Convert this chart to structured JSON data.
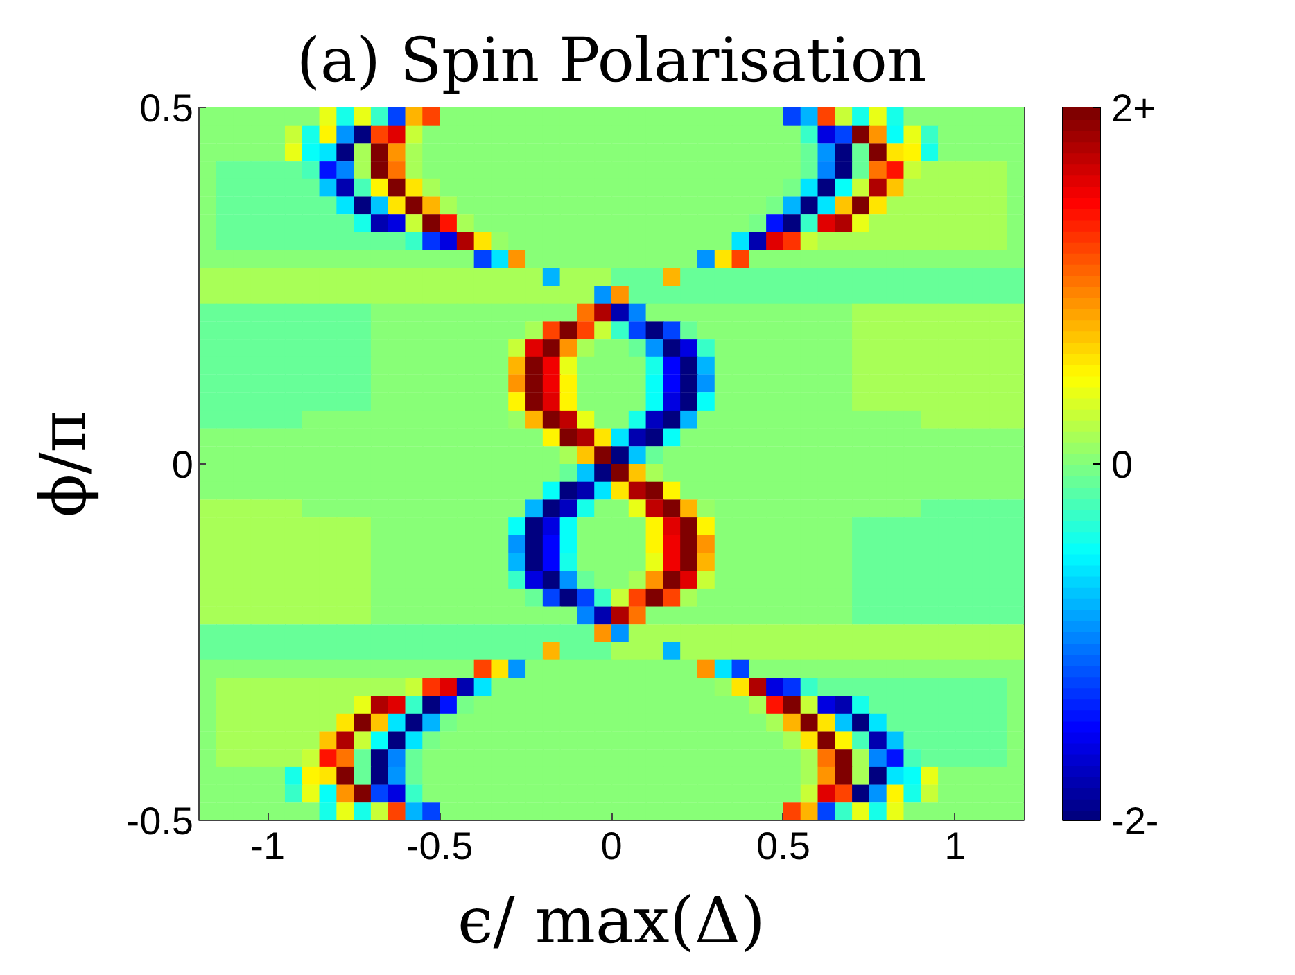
{
  "chart_data": {
    "type": "heatmap",
    "title": "(a) Spin Polarisation",
    "xlabel": "ϵ/ max(Δ)",
    "ylabel": "ϕ/π",
    "xlim": [
      -1.2,
      1.2
    ],
    "xticks": [
      -1,
      -0.5,
      0,
      0.5,
      1
    ],
    "ylim": [
      -0.5,
      0.5
    ],
    "yticks": [
      -0.5,
      0,
      0.5
    ],
    "clim": [
      -2,
      2
    ],
    "cticks": [
      {
        "value": -2,
        "label": "-2-"
      },
      0,
      {
        "value": 2,
        "label": "2+"
      }
    ],
    "x": [
      -1.175,
      -1.125,
      -1.075,
      -1.025,
      -0.975,
      -0.925,
      -0.875,
      -0.825,
      -0.775,
      -0.725,
      -0.675,
      -0.625,
      -0.575,
      -0.525,
      -0.475,
      -0.425,
      -0.375,
      -0.325,
      -0.275,
      -0.225,
      -0.175,
      -0.125,
      -0.075,
      -0.025,
      0.025,
      0.075,
      0.125,
      0.175,
      0.225,
      0.275,
      0.325,
      0.375,
      0.425,
      0.475,
      0.525,
      0.575,
      0.625,
      0.675,
      0.725,
      0.775,
      0.825,
      0.875,
      0.925,
      0.975,
      1.025,
      1.075,
      1.125,
      1.175
    ],
    "cells": [
      [
        0.05,
        0.05,
        0.05,
        0.05,
        0.05,
        0.05,
        0.05,
        0.4,
        -0.4,
        0.4,
        -0.3,
        -1.2,
        0.8,
        1.2,
        0.05,
        0.05,
        0.05,
        0.05,
        0.05,
        0.05,
        0.05,
        0.05,
        0.05,
        0.05,
        0.05,
        0.05,
        0.05,
        0.05,
        0.05,
        0.05,
        0.05,
        0.05,
        0.05,
        0.05,
        -1.2,
        -0.8,
        1.2,
        0.3,
        -0.4,
        0.4,
        -0.4,
        0.05,
        0.05,
        0.05,
        0.05,
        0.05,
        0.05,
        0.05
      ],
      [
        0.05,
        0.05,
        0.05,
        0.05,
        0.05,
        0.3,
        -0.4,
        0.5,
        -0.9,
        -2,
        1.2,
        1.6,
        0.3,
        0.05,
        0.05,
        0.05,
        0.05,
        0.05,
        0.05,
        0.05,
        0.05,
        0.05,
        0.05,
        0.05,
        0.05,
        0.05,
        0.05,
        0.05,
        0.05,
        0.05,
        0.05,
        0.05,
        0.05,
        0.05,
        0.05,
        -0.3,
        -1.6,
        -1.2,
        2,
        0.9,
        -0.5,
        0.4,
        -0.3,
        0.05,
        0.05,
        0.05,
        0.05,
        0.05
      ],
      [
        0.05,
        0.05,
        0.05,
        0.05,
        0.05,
        0.4,
        -0.5,
        -0.6,
        -2,
        0.15,
        2,
        0.9,
        0.15,
        0.05,
        0.05,
        0.05,
        0.05,
        0.05,
        0.05,
        0.05,
        0.05,
        0.05,
        0.05,
        0.05,
        0.05,
        0.05,
        0.05,
        0.05,
        0.05,
        0.05,
        0.05,
        0.05,
        0.05,
        0.05,
        0.05,
        -0.1,
        -0.9,
        -2,
        -0.1,
        2,
        0.6,
        0.5,
        -0.4,
        0.05,
        0.05,
        0.05,
        0.05,
        0.05
      ],
      [
        0.05,
        -0.1,
        -0.1,
        -0.1,
        -0.1,
        -0.1,
        -0.2,
        -1.4,
        -1,
        0.15,
        2,
        1,
        0.15,
        0.05,
        0.05,
        0.05,
        0.05,
        0.05,
        0.05,
        0.05,
        0.05,
        0.05,
        0.05,
        0.05,
        0.05,
        0.05,
        0.05,
        0.05,
        0.05,
        0.05,
        0.05,
        0.05,
        0.05,
        0.05,
        0.05,
        -0.1,
        -1,
        -2,
        -0.1,
        1,
        1.4,
        0.3,
        0.15,
        0.15,
        0.15,
        0.15,
        0.15,
        0.05
      ],
      [
        0.05,
        -0.1,
        -0.1,
        -0.1,
        -0.1,
        -0.1,
        -0.1,
        -0.7,
        -1.8,
        -0.2,
        0.5,
        2,
        0.6,
        0.15,
        0.05,
        0.05,
        0.05,
        0.05,
        0.05,
        0.05,
        0.05,
        0.05,
        0.05,
        0.05,
        0.05,
        0.05,
        0.05,
        0.05,
        0.05,
        0.05,
        0.05,
        0.05,
        0.05,
        0.05,
        -0.05,
        -0.6,
        -2,
        -0.5,
        0.3,
        1.8,
        0.7,
        0.15,
        0.15,
        0.15,
        0.15,
        0.15,
        0.15,
        0.05
      ],
      [
        0.05,
        -0.1,
        -0.1,
        -0.1,
        -0.1,
        -0.1,
        -0.1,
        -0.1,
        -0.6,
        -2,
        -0.7,
        0.6,
        2,
        0.8,
        0.15,
        0.05,
        0.05,
        0.05,
        0.05,
        0.05,
        0.05,
        0.05,
        0.05,
        0.05,
        0.05,
        0.05,
        0.05,
        0.05,
        0.05,
        0.05,
        0.05,
        0.05,
        0.05,
        -0.05,
        -0.8,
        -2,
        -0.6,
        0.7,
        2,
        0.6,
        0.15,
        0.15,
        0.15,
        0.15,
        0.15,
        0.15,
        0.15,
        0.05
      ],
      [
        0.05,
        -0.1,
        -0.1,
        -0.1,
        -0.1,
        -0.1,
        -0.1,
        -0.1,
        -0.1,
        -0.4,
        -1.8,
        -1.6,
        0.3,
        2,
        1.4,
        0.15,
        0.05,
        0.05,
        0.05,
        0.05,
        0.05,
        0.05,
        0.05,
        0.05,
        0.05,
        0.05,
        0.05,
        0.05,
        0.05,
        0.05,
        0.05,
        0.05,
        -0.05,
        -1.4,
        -2,
        -0.3,
        1.6,
        1.8,
        0.4,
        0.15,
        0.15,
        0.15,
        0.15,
        0.15,
        0.15,
        0.15,
        0.15,
        0.05
      ],
      [
        0.05,
        -0.1,
        -0.1,
        -0.1,
        -0.1,
        -0.1,
        -0.1,
        -0.1,
        -0.1,
        -0.1,
        -0.1,
        -0.1,
        -0.3,
        -1.3,
        -1.6,
        1.8,
        0.6,
        0.1,
        0.05,
        0.05,
        0.05,
        0.05,
        0.05,
        0.05,
        0.05,
        0.05,
        0.05,
        0.05,
        0.05,
        0.05,
        0,
        -0.6,
        -1.8,
        1.6,
        1.3,
        0.3,
        0.15,
        0.15,
        0.15,
        0.15,
        0.15,
        0.15,
        0.15,
        0.15,
        0.15,
        0.15,
        0.15,
        0.05
      ],
      [
        0.05,
        0.05,
        0.05,
        0.05,
        0.05,
        0.05,
        0.05,
        0.05,
        0.05,
        0.05,
        0.05,
        0.05,
        0.05,
        0.05,
        0.05,
        0.05,
        -1.2,
        -0.6,
        0.9,
        0.05,
        0.05,
        0.05,
        0.05,
        0.05,
        0.05,
        0.05,
        0.05,
        0.05,
        0.05,
        -0.9,
        0.6,
        1.2,
        0.05,
        0.05,
        0.05,
        0.05,
        0.05,
        0.05,
        0.05,
        0.05,
        0.05,
        0.05,
        0.05,
        0.05,
        0.05,
        0.05,
        0.05,
        0.05
      ],
      [
        0.15,
        0.15,
        0.15,
        0.15,
        0.15,
        0.15,
        0.15,
        0.15,
        0.15,
        0.15,
        0.15,
        0.15,
        0.15,
        0.15,
        0.15,
        0.15,
        0.15,
        0.15,
        0.15,
        0.15,
        -0.8,
        0.15,
        0.15,
        0.15,
        -0.1,
        -0.1,
        -0.1,
        0.8,
        -0.1,
        -0.1,
        -0.1,
        -0.1,
        -0.1,
        -0.1,
        -0.1,
        -0.1,
        -0.1,
        -0.1,
        -0.1,
        -0.1,
        -0.1,
        -0.1,
        -0.1,
        -0.1,
        -0.1,
        -0.1,
        -0.1,
        -0.1
      ],
      [
        0.15,
        0.15,
        0.15,
        0.15,
        0.15,
        0.15,
        0.15,
        0.15,
        0.15,
        0.15,
        0.15,
        0.15,
        0.15,
        0.15,
        0.15,
        0.15,
        0.15,
        0.15,
        0.15,
        0.15,
        0.15,
        0.15,
        0.15,
        -0.9,
        0.9,
        -0.1,
        -0.1,
        -0.1,
        -0.1,
        -0.1,
        -0.1,
        -0.1,
        -0.1,
        -0.1,
        -0.1,
        -0.1,
        -0.1,
        -0.1,
        -0.1,
        -0.1,
        -0.1,
        -0.1,
        -0.1,
        -0.1,
        -0.1,
        -0.1,
        -0.1,
        -0.1
      ],
      [
        -0.1,
        -0.1,
        -0.1,
        -0.1,
        -0.1,
        -0.1,
        -0.1,
        -0.1,
        -0.1,
        -0.1,
        0.05,
        0.05,
        0.05,
        0.05,
        0.05,
        0.05,
        0.05,
        0.05,
        0.05,
        0.05,
        0.05,
        0.05,
        1,
        1.8,
        -1.8,
        -1,
        0.05,
        0.05,
        0.05,
        0.05,
        0.05,
        0.05,
        0.05,
        0.05,
        0.05,
        0.05,
        0.05,
        0.05,
        0.15,
        0.15,
        0.15,
        0.15,
        0.15,
        0.15,
        0.15,
        0.15,
        0.15,
        0.15
      ],
      [
        -0.1,
        -0.1,
        -0.1,
        -0.1,
        -0.1,
        -0.1,
        -0.1,
        -0.1,
        -0.1,
        -0.1,
        0.05,
        0.05,
        0.05,
        0.05,
        0.05,
        0.05,
        0.05,
        0.05,
        0.05,
        0.15,
        1.2,
        2,
        1.2,
        0.3,
        -0.3,
        -1.2,
        -2,
        -1.2,
        -0.1,
        0.05,
        0.05,
        0.05,
        0.05,
        0.05,
        0.05,
        0.05,
        0.05,
        0.05,
        0.15,
        0.15,
        0.15,
        0.15,
        0.15,
        0.15,
        0.15,
        0.15,
        0.15,
        0.15
      ],
      [
        -0.1,
        -0.1,
        -0.1,
        -0.1,
        -0.1,
        -0.1,
        -0.1,
        -0.1,
        -0.1,
        -0.1,
        0.05,
        0.05,
        0.05,
        0.05,
        0.05,
        0.05,
        0.05,
        0.05,
        0.3,
        1.6,
        2,
        0.9,
        0.15,
        0.05,
        0.05,
        -0.1,
        -0.9,
        -2,
        -1.6,
        -0.3,
        0.05,
        0.05,
        0.05,
        0.05,
        0.05,
        0.05,
        0.05,
        0.05,
        0.15,
        0.15,
        0.15,
        0.15,
        0.15,
        0.15,
        0.15,
        0.15,
        0.15,
        0.15
      ],
      [
        -0.1,
        -0.1,
        -0.1,
        -0.1,
        -0.1,
        -0.1,
        -0.1,
        -0.1,
        -0.1,
        -0.1,
        0.05,
        0.05,
        0.05,
        0.05,
        0.05,
        0.05,
        0.05,
        0.05,
        0.8,
        2,
        1.5,
        0.4,
        0.05,
        0.05,
        0.05,
        0.05,
        -0.4,
        -1.5,
        -2,
        -0.8,
        0.05,
        0.05,
        0.05,
        0.05,
        0.05,
        0.05,
        0.05,
        0.05,
        0.15,
        0.15,
        0.15,
        0.15,
        0.15,
        0.15,
        0.15,
        0.15,
        0.15,
        0.15
      ],
      [
        -0.1,
        -0.1,
        -0.1,
        -0.1,
        -0.1,
        -0.1,
        -0.1,
        -0.1,
        -0.1,
        -0.1,
        0.05,
        0.05,
        0.05,
        0.05,
        0.05,
        0.05,
        0.05,
        0.05,
        0.9,
        2,
        1.5,
        0.5,
        0.05,
        0.05,
        0.05,
        0.05,
        -0.5,
        -1.5,
        -2,
        -0.9,
        0.05,
        0.05,
        0.05,
        0.05,
        0.05,
        0.05,
        0.05,
        0.05,
        0.15,
        0.15,
        0.15,
        0.15,
        0.15,
        0.15,
        0.15,
        0.15,
        0.15,
        0.15
      ],
      [
        -0.1,
        -0.1,
        -0.1,
        -0.1,
        -0.1,
        -0.1,
        -0.1,
        -0.1,
        -0.1,
        -0.1,
        0.05,
        0.05,
        0.05,
        0.05,
        0.05,
        0.05,
        0.05,
        0.05,
        0.5,
        2,
        1.6,
        0.5,
        0.05,
        0.05,
        0.05,
        0.05,
        -0.5,
        -1.6,
        -2,
        -0.5,
        0.05,
        0.05,
        0.05,
        0.05,
        0.05,
        0.05,
        0.05,
        0.05,
        0.15,
        0.15,
        0.15,
        0.15,
        0.15,
        0.15,
        0.15,
        0.15,
        0.15,
        0.15
      ],
      [
        -0.1,
        -0.1,
        -0.1,
        -0.1,
        -0.1,
        -0.1,
        0.05,
        0.05,
        0.05,
        0.05,
        0.05,
        0.05,
        0.05,
        0.05,
        0.05,
        0.05,
        0.05,
        0.05,
        0.1,
        0.8,
        2,
        1.7,
        0.4,
        0.05,
        0.05,
        -0.4,
        -1.7,
        -2,
        -0.8,
        0,
        0.05,
        0.05,
        0.05,
        0.05,
        0.05,
        0.05,
        0.05,
        0.05,
        0.05,
        0.05,
        0.05,
        0.05,
        0.15,
        0.15,
        0.15,
        0.15,
        0.15,
        0.15
      ],
      [
        0.05,
        0.05,
        0.05,
        0.05,
        0.05,
        0.05,
        0.05,
        0.05,
        0.05,
        0.05,
        0.05,
        0.05,
        0.05,
        0.05,
        0.05,
        0.05,
        0.05,
        0.05,
        0.05,
        0.05,
        0.5,
        2,
        1.8,
        0.6,
        -0.6,
        -1.8,
        -2,
        -0.5,
        0.05,
        0.05,
        0.05,
        0.05,
        0.05,
        0.05,
        0.05,
        0.05,
        0.05,
        0.05,
        0.05,
        0.05,
        0.05,
        0.05,
        0.05,
        0.05,
        0.05,
        0.05,
        0.05,
        0.05
      ],
      [
        0.05,
        0.05,
        0.05,
        0.05,
        0.05,
        0.05,
        0.05,
        0.05,
        0.05,
        0.05,
        0.05,
        0.05,
        0.05,
        0.05,
        0.05,
        0.05,
        0.05,
        0.05,
        0.05,
        0.05,
        0.05,
        0.15,
        0.7,
        2,
        -2,
        -0.7,
        -0.1,
        0.05,
        0.05,
        0.05,
        0.05,
        0.05,
        0.05,
        0.05,
        0.05,
        0.05,
        0.05,
        0.05,
        0.05,
        0.05,
        0.05,
        0.05,
        0.05,
        0.05,
        0.05,
        0.05,
        0.05,
        0.05
      ],
      [
        0.05,
        0.05,
        0.05,
        0.05,
        0.05,
        0.05,
        0.05,
        0.05,
        0.05,
        0.05,
        0.05,
        0.05,
        0.05,
        0.05,
        0.05,
        0.05,
        0.05,
        0.05,
        0.05,
        0.05,
        0.05,
        -0.1,
        -0.7,
        -2,
        2,
        0.7,
        0.15,
        0.05,
        0.05,
        0.05,
        0.05,
        0.05,
        0.05,
        0.05,
        0.05,
        0.05,
        0.05,
        0.05,
        0.05,
        0.05,
        0.05,
        0.05,
        0.05,
        0.05,
        0.05,
        0.05,
        0.05,
        0.05
      ],
      [
        0.05,
        0.05,
        0.05,
        0.05,
        0.05,
        0.05,
        0.05,
        0.05,
        0.05,
        0.05,
        0.05,
        0.05,
        0.05,
        0.05,
        0.05,
        0.05,
        0.05,
        0.05,
        0.05,
        0.05,
        -0.5,
        -2,
        -1.8,
        -0.6,
        0.6,
        1.8,
        2,
        0.5,
        0.05,
        0.05,
        0.05,
        0.05,
        0.05,
        0.05,
        0.05,
        0.05,
        0.05,
        0.05,
        0.05,
        0.05,
        0.05,
        0.05,
        0.05,
        0.05,
        0.05,
        0.05,
        0.05,
        0.05
      ],
      [
        0.15,
        0.15,
        0.15,
        0.15,
        0.15,
        0.15,
        0.05,
        0.05,
        0.05,
        0.05,
        0.05,
        0.05,
        0.05,
        0.05,
        0.05,
        0.05,
        0.05,
        0.05,
        0,
        -0.8,
        -2,
        -1.7,
        -0.4,
        0.05,
        0.05,
        0.4,
        1.7,
        2,
        0.8,
        0.1,
        0.05,
        0.05,
        0.05,
        0.05,
        0.05,
        0.05,
        0.05,
        0.05,
        0.05,
        0.05,
        0.05,
        0.05,
        -0.1,
        -0.1,
        -0.1,
        -0.1,
        -0.1,
        -0.1
      ],
      [
        0.15,
        0.15,
        0.15,
        0.15,
        0.15,
        0.15,
        0.15,
        0.15,
        0.15,
        0.15,
        0.05,
        0.05,
        0.05,
        0.05,
        0.05,
        0.05,
        0.05,
        0.05,
        -0.5,
        -2,
        -1.6,
        -0.5,
        0.05,
        0.05,
        0.05,
        0.05,
        0.5,
        1.6,
        2,
        0.5,
        0.05,
        0.05,
        0.05,
        0.05,
        0.05,
        0.05,
        0.05,
        0.05,
        -0.1,
        -0.1,
        -0.1,
        -0.1,
        -0.1,
        -0.1,
        -0.1,
        -0.1,
        -0.1,
        -0.1
      ],
      [
        0.15,
        0.15,
        0.15,
        0.15,
        0.15,
        0.15,
        0.15,
        0.15,
        0.15,
        0.15,
        0.05,
        0.05,
        0.05,
        0.05,
        0.05,
        0.05,
        0.05,
        0.05,
        -0.9,
        -2,
        -1.5,
        -0.5,
        0.05,
        0.05,
        0.05,
        0.05,
        0.5,
        1.5,
        2,
        0.9,
        0.05,
        0.05,
        0.05,
        0.05,
        0.05,
        0.05,
        0.05,
        0.05,
        -0.1,
        -0.1,
        -0.1,
        -0.1,
        -0.1,
        -0.1,
        -0.1,
        -0.1,
        -0.1,
        -0.1
      ],
      [
        0.15,
        0.15,
        0.15,
        0.15,
        0.15,
        0.15,
        0.15,
        0.15,
        0.15,
        0.15,
        0.05,
        0.05,
        0.05,
        0.05,
        0.05,
        0.05,
        0.05,
        0.05,
        -0.8,
        -2,
        -1.5,
        -0.4,
        0.05,
        0.05,
        0.05,
        0.05,
        0.4,
        1.5,
        2,
        0.8,
        0.05,
        0.05,
        0.05,
        0.05,
        0.05,
        0.05,
        0.05,
        0.05,
        -0.1,
        -0.1,
        -0.1,
        -0.1,
        -0.1,
        -0.1,
        -0.1,
        -0.1,
        -0.1,
        -0.1
      ],
      [
        0.15,
        0.15,
        0.15,
        0.15,
        0.15,
        0.15,
        0.15,
        0.15,
        0.15,
        0.15,
        0.05,
        0.05,
        0.05,
        0.05,
        0.05,
        0.05,
        0.05,
        0.05,
        -0.3,
        -1.6,
        -2,
        -0.9,
        -0.1,
        0.05,
        0.05,
        0.15,
        0.9,
        2,
        1.6,
        0.3,
        0.05,
        0.05,
        0.05,
        0.05,
        0.05,
        0.05,
        0.05,
        0.05,
        -0.1,
        -0.1,
        -0.1,
        -0.1,
        -0.1,
        -0.1,
        -0.1,
        -0.1,
        -0.1,
        -0.1
      ],
      [
        0.15,
        0.15,
        0.15,
        0.15,
        0.15,
        0.15,
        0.15,
        0.15,
        0.15,
        0.15,
        0.05,
        0.05,
        0.05,
        0.05,
        0.05,
        0.05,
        0.05,
        0.05,
        0.05,
        -0.1,
        -1.2,
        -2,
        -1.2,
        -0.3,
        0.3,
        1.2,
        2,
        1.2,
        0.15,
        0.05,
        0.05,
        0.05,
        0.05,
        0.05,
        0.05,
        0.05,
        0.05,
        0.05,
        -0.1,
        -0.1,
        -0.1,
        -0.1,
        -0.1,
        -0.1,
        -0.1,
        -0.1,
        -0.1,
        -0.1
      ],
      [
        0.15,
        0.15,
        0.15,
        0.15,
        0.15,
        0.15,
        0.15,
        0.15,
        0.15,
        0.15,
        0.05,
        0.05,
        0.05,
        0.05,
        0.05,
        0.05,
        0.05,
        0.05,
        0.05,
        0.05,
        0.05,
        0.05,
        -1,
        -1.8,
        1.8,
        1,
        0.05,
        0.05,
        0.05,
        0.05,
        0.05,
        0.05,
        0.05,
        0.05,
        0.05,
        0.05,
        0.05,
        0.05,
        -0.1,
        -0.1,
        -0.1,
        -0.1,
        -0.1,
        -0.1,
        -0.1,
        -0.1,
        -0.1,
        -0.1
      ],
      [
        -0.1,
        -0.1,
        -0.1,
        -0.1,
        -0.1,
        -0.1,
        -0.1,
        -0.1,
        -0.1,
        -0.1,
        -0.1,
        -0.1,
        -0.1,
        -0.1,
        -0.1,
        -0.1,
        -0.1,
        -0.1,
        -0.1,
        -0.1,
        -0.1,
        -0.1,
        -0.1,
        0.9,
        -0.9,
        0.15,
        0.15,
        0.15,
        0.15,
        0.15,
        0.15,
        0.15,
        0.15,
        0.15,
        0.15,
        0.15,
        0.15,
        0.15,
        0.15,
        0.15,
        0.15,
        0.15,
        0.15,
        0.15,
        0.15,
        0.15,
        0.15,
        0.15
      ],
      [
        -0.1,
        -0.1,
        -0.1,
        -0.1,
        -0.1,
        -0.1,
        -0.1,
        -0.1,
        -0.1,
        -0.1,
        -0.1,
        -0.1,
        -0.1,
        -0.1,
        -0.1,
        -0.1,
        -0.1,
        -0.1,
        -0.1,
        -0.1,
        0.8,
        -0.1,
        -0.1,
        -0.1,
        0.15,
        0.15,
        0.15,
        -0.8,
        0.15,
        0.15,
        0.15,
        0.15,
        0.15,
        0.15,
        0.15,
        0.15,
        0.15,
        0.15,
        0.15,
        0.15,
        0.15,
        0.15,
        0.15,
        0.15,
        0.15,
        0.15,
        0.15,
        0.15
      ],
      [
        0.05,
        0.05,
        0.05,
        0.05,
        0.05,
        0.05,
        0.05,
        0.05,
        0.05,
        0.05,
        0.05,
        0.05,
        0.05,
        0.05,
        0.05,
        0.05,
        1.2,
        0.6,
        -0.9,
        0.05,
        0.05,
        0.05,
        0.05,
        0.05,
        0.05,
        0.05,
        0.05,
        0.05,
        0.05,
        0.9,
        -0.6,
        -1.2,
        0.05,
        0.05,
        0.05,
        0.05,
        0.05,
        0.05,
        0.05,
        0.05,
        0.05,
        0.05,
        0.05,
        0.05,
        0.05,
        0.05,
        0.05,
        0.05
      ],
      [
        0.05,
        0.15,
        0.15,
        0.15,
        0.15,
        0.15,
        0.15,
        0.15,
        0.15,
        0.15,
        0.15,
        0.15,
        0.3,
        1.3,
        1.6,
        -1.8,
        -0.6,
        0,
        0.05,
        0.05,
        0.05,
        0.05,
        0.05,
        0.05,
        0.05,
        0.05,
        0.05,
        0.05,
        0.05,
        0.05,
        0.1,
        0.6,
        1.8,
        -1.6,
        -1.3,
        -0.3,
        -0.1,
        -0.1,
        -0.1,
        -0.1,
        -0.1,
        -0.1,
        -0.1,
        -0.1,
        -0.1,
        -0.1,
        -0.1,
        0.05
      ],
      [
        0.05,
        0.15,
        0.15,
        0.15,
        0.15,
        0.15,
        0.15,
        0.15,
        0.15,
        0.4,
        1.8,
        1.6,
        -0.3,
        -2,
        -1.4,
        -0.05,
        0.05,
        0.05,
        0.05,
        0.05,
        0.05,
        0.05,
        0.05,
        0.05,
        0.05,
        0.05,
        0.05,
        0.05,
        0.05,
        0.05,
        0.05,
        0.05,
        0.15,
        1.4,
        2,
        0.3,
        -1.6,
        -1.8,
        -0.4,
        -0.1,
        -0.1,
        -0.1,
        -0.1,
        -0.1,
        -0.1,
        -0.1,
        -0.1,
        0.05
      ],
      [
        0.05,
        0.15,
        0.15,
        0.15,
        0.15,
        0.15,
        0.15,
        0.15,
        0.6,
        2,
        0.7,
        -0.6,
        -2,
        -0.8,
        -0.05,
        0.05,
        0.05,
        0.05,
        0.05,
        0.05,
        0.05,
        0.05,
        0.05,
        0.05,
        0.05,
        0.05,
        0.05,
        0.05,
        0.05,
        0.05,
        0.05,
        0.05,
        0.05,
        0.15,
        0.8,
        2,
        0.6,
        -0.7,
        -2,
        -0.6,
        -0.1,
        -0.1,
        -0.1,
        -0.1,
        -0.1,
        -0.1,
        -0.1,
        0.05
      ],
      [
        0.05,
        0.15,
        0.15,
        0.15,
        0.15,
        0.15,
        0.15,
        0.7,
        1.8,
        0.3,
        -0.5,
        -2,
        -0.6,
        -0.05,
        0.05,
        0.05,
        0.05,
        0.05,
        0.05,
        0.05,
        0.05,
        0.05,
        0.05,
        0.05,
        0.05,
        0.05,
        0.05,
        0.05,
        0.05,
        0.05,
        0.05,
        0.05,
        0.05,
        0.05,
        0.15,
        0.6,
        2,
        0.5,
        -0.2,
        -1.8,
        -0.7,
        -0.1,
        -0.1,
        -0.1,
        -0.1,
        -0.1,
        -0.1,
        0.05
      ],
      [
        0.05,
        0.15,
        0.15,
        0.15,
        0.15,
        0.15,
        0.3,
        1.4,
        1,
        -0.1,
        -2,
        -1,
        -0.1,
        0.05,
        0.05,
        0.05,
        0.05,
        0.05,
        0.05,
        0.05,
        0.05,
        0.05,
        0.05,
        0.05,
        0.05,
        0.05,
        0.05,
        0.05,
        0.05,
        0.05,
        0.05,
        0.05,
        0.05,
        0.05,
        0.05,
        0.15,
        1,
        2,
        0.15,
        -1,
        -1.4,
        -0.2,
        -0.1,
        -0.1,
        -0.1,
        -0.1,
        -0.1,
        0.05
      ],
      [
        0.05,
        0.05,
        0.05,
        0.05,
        0.05,
        -0.4,
        0.5,
        0.6,
        2,
        -0.1,
        -2,
        -0.9,
        -0.1,
        0.05,
        0.05,
        0.05,
        0.05,
        0.05,
        0.05,
        0.05,
        0.05,
        0.05,
        0.05,
        0.05,
        0.05,
        0.05,
        0.05,
        0.05,
        0.05,
        0.05,
        0.05,
        0.05,
        0.05,
        0.05,
        0.05,
        0.15,
        0.9,
        2,
        0.15,
        -2,
        -0.6,
        -0.5,
        0.4,
        0.05,
        0.05,
        0.05,
        0.05,
        0.05
      ],
      [
        0.05,
        0.05,
        0.05,
        0.05,
        0.05,
        -0.3,
        0.4,
        -0.5,
        0.9,
        2,
        -1.2,
        -1.6,
        -0.3,
        0.05,
        0.05,
        0.05,
        0.05,
        0.05,
        0.05,
        0.05,
        0.05,
        0.05,
        0.05,
        0.05,
        0.05,
        0.05,
        0.05,
        0.05,
        0.05,
        0.05,
        0.05,
        0.05,
        0.05,
        0.05,
        0.05,
        0.3,
        1.6,
        1.2,
        -2,
        -0.9,
        0.5,
        -0.4,
        0.3,
        0.05,
        0.05,
        0.05,
        0.05,
        0.05
      ],
      [
        0.05,
        0.05,
        0.05,
        0.05,
        0.05,
        0.05,
        0.05,
        -0.4,
        0.4,
        -0.4,
        0.3,
        1.2,
        -0.8,
        -1.2,
        0.05,
        0.05,
        0.05,
        0.05,
        0.05,
        0.05,
        0.05,
        0.05,
        0.05,
        0.05,
        0.05,
        0.05,
        0.05,
        0.05,
        0.05,
        0.05,
        0.05,
        0.05,
        0.05,
        0.05,
        1.2,
        0.8,
        -1.2,
        -0.3,
        0.4,
        -0.4,
        0.4,
        0.05,
        0.05,
        0.05,
        0.05,
        0.05,
        0.05,
        0.05
      ]
    ]
  }
}
